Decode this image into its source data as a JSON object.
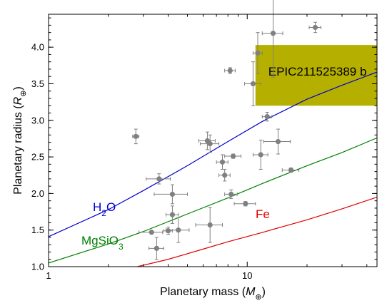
{
  "chart_data": {
    "type": "scatter",
    "xlabel_text": "Planetary mass (",
    "xlabel_sym": "M",
    "xlabel_sub": "⊕",
    "xlabel_end": ")",
    "ylabel_text": "Planetary radius (",
    "ylabel_sym": "R",
    "ylabel_sub": "⊕",
    "ylabel_end": ")",
    "x_scale": "log",
    "xlim": [
      1,
      45
    ],
    "ylim": [
      1.0,
      4.45
    ],
    "x_ticks": [
      {
        "value": 1,
        "label": "1"
      },
      {
        "value": 10,
        "label": "10"
      }
    ],
    "y_ticks": [
      {
        "value": 1.0,
        "label": "1.0"
      },
      {
        "value": 1.5,
        "label": "1.5"
      },
      {
        "value": 2.0,
        "label": "2.0"
      },
      {
        "value": 2.5,
        "label": "2.5"
      },
      {
        "value": 3.0,
        "label": "3.0"
      },
      {
        "value": 3.5,
        "label": "3.5"
      },
      {
        "value": 4.0,
        "label": "4.0"
      }
    ],
    "grid": false,
    "highlight_region": {
      "label": "EPIC211525389 b",
      "x_range": [
        11.0,
        45
      ],
      "y_range": [
        3.2,
        4.03
      ],
      "color": "#b5b000"
    },
    "curves": [
      {
        "label_main": "H",
        "label_sub": "2",
        "label_end": "O",
        "color": "#0000cc",
        "x": [
          1,
          2,
          3,
          5,
          8,
          12,
          20,
          30,
          45
        ],
        "y": [
          1.41,
          1.78,
          2.04,
          2.38,
          2.71,
          2.99,
          3.29,
          3.48,
          3.66
        ]
      },
      {
        "label_main": "MgSiO",
        "label_sub": "3",
        "label_end": "",
        "color": "#008000",
        "x": [
          1,
          2,
          3,
          5,
          8,
          12,
          20,
          30,
          45
        ],
        "y": [
          1.05,
          1.31,
          1.48,
          1.72,
          1.94,
          2.14,
          2.38,
          2.56,
          2.76
        ]
      },
      {
        "label_main": "Fe",
        "label_sub": "",
        "label_end": "",
        "color": "#dd0000",
        "x": [
          2.8,
          4,
          6,
          8,
          12,
          20,
          30,
          45
        ],
        "y": [
          1.0,
          1.1,
          1.24,
          1.34,
          1.47,
          1.64,
          1.79,
          1.95
        ]
      }
    ],
    "points": [
      {
        "x": 2.75,
        "y": 2.78,
        "xerr": 0.1,
        "yerr": 0.1
      },
      {
        "x": 3.3,
        "y": 1.47,
        "xerr": 0.45,
        "yerr": 0.0
      },
      {
        "x": 3.6,
        "y": 2.2,
        "xerr": 0.5,
        "yerr": 0.07
      },
      {
        "x": 3.5,
        "y": 1.25,
        "xerr": 0.3,
        "yerr": 0.15
      },
      {
        "x": 4.0,
        "y": 1.49,
        "xerr": 0.2,
        "yerr": 0.05
      },
      {
        "x": 4.2,
        "y": 1.99,
        "xerr": 0.8,
        "yerr": 0.13
      },
      {
        "x": 4.2,
        "y": 1.71,
        "xerr": 0.3,
        "yerr": 0.12
      },
      {
        "x": 4.5,
        "y": 1.5,
        "xerr": 0.6,
        "yerr": 0.17
      },
      {
        "x": 6.3,
        "y": 2.72,
        "xerr": 0.6,
        "yerr": 0.12
      },
      {
        "x": 6.5,
        "y": 2.68,
        "xerr": 0.7,
        "yerr": 0.12
      },
      {
        "x": 6.5,
        "y": 1.57,
        "xerr": 1.0,
        "yerr": 0.24
      },
      {
        "x": 7.5,
        "y": 2.43,
        "xerr": 0.5,
        "yerr": 0.1
      },
      {
        "x": 7.7,
        "y": 2.25,
        "xerr": 0.5,
        "yerr": 0.08
      },
      {
        "x": 8.3,
        "y": 1.99,
        "xerr": 0.6,
        "yerr": 0.06
      },
      {
        "x": 8.5,
        "y": 2.51,
        "xerr": 0.8,
        "yerr": 0.03
      },
      {
        "x": 8.2,
        "y": 3.68,
        "xerr": 0.5,
        "yerr": 0.04
      },
      {
        "x": 9.8,
        "y": 1.86,
        "xerr": 1.2,
        "yerr": 0.03
      },
      {
        "x": 10.7,
        "y": 3.5,
        "xerr": 1.0,
        "yerr": 0.3
      },
      {
        "x": 11.3,
        "y": 3.92,
        "xerr": 0.6,
        "yerr": 0.28
      },
      {
        "x": 11.7,
        "y": 2.53,
        "xerr": 1.0,
        "yerr": 0.2
      },
      {
        "x": 12.6,
        "y": 3.05,
        "xerr": 0.7,
        "yerr": 0.06
      },
      {
        "x": 13.5,
        "y": 4.19,
        "xerr": 1.6,
        "yerr": 0.6
      },
      {
        "x": 14.3,
        "y": 2.71,
        "xerr": 2.2,
        "yerr": 0.17
      },
      {
        "x": 16.6,
        "y": 2.32,
        "xerr": 1.6,
        "yerr": 0.03
      },
      {
        "x": 22.0,
        "y": 4.27,
        "xerr": 1.5,
        "yerr": 0.07
      }
    ],
    "point_color": "#808080"
  }
}
